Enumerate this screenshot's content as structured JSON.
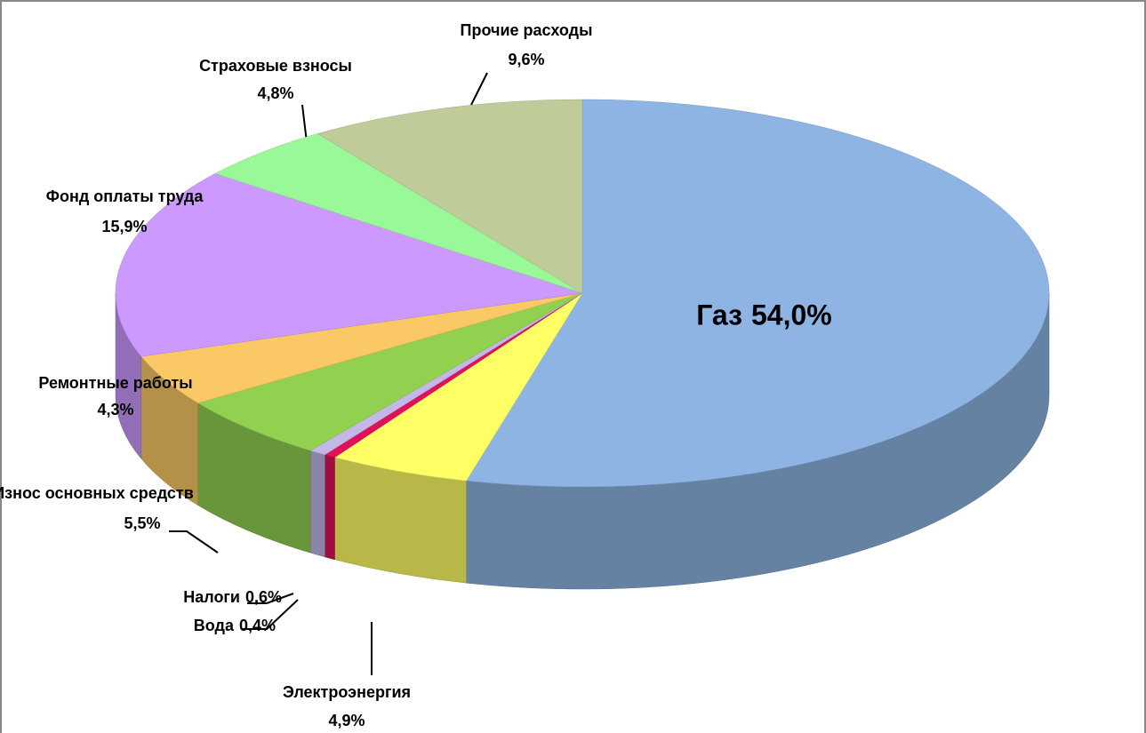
{
  "chart_data": {
    "type": "pie3d",
    "categories": [
      "Газ",
      "Электроэнергия",
      "Вода",
      "Налоги",
      "Износ основных средств",
      "Ремонтные работы",
      "Фонд оплаты труда",
      "Страховые взносы",
      "Прочие расходы"
    ],
    "values": [
      54.0,
      4.9,
      0.4,
      0.6,
      5.5,
      4.3,
      15.9,
      4.8,
      9.6
    ],
    "value_labels": [
      "54,0%",
      "4,9%",
      "0,4%",
      "0,6%",
      "5,5%",
      "4,3%",
      "15,9%",
      "4,8%",
      "9,6%"
    ],
    "colors": [
      "#8eb4e3",
      "#ffff66",
      "#e0105a",
      "#c3b8e8",
      "#92d050",
      "#fac864",
      "#cc99ff",
      "#99f999",
      "#bfcc99"
    ]
  }
}
